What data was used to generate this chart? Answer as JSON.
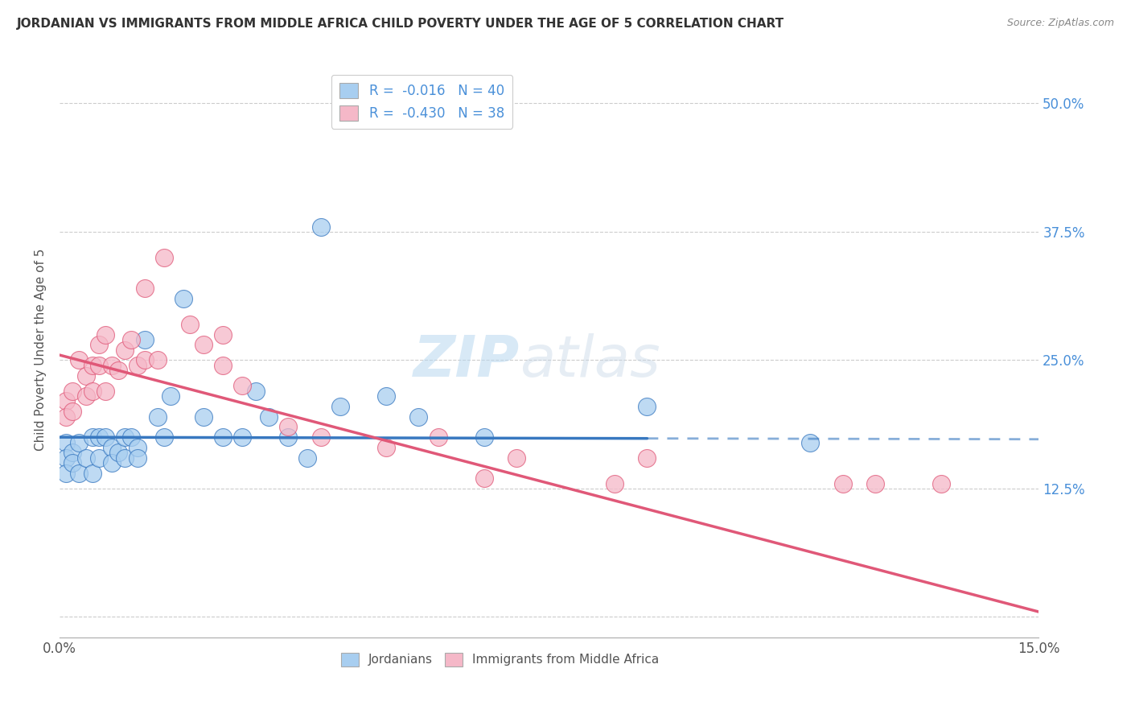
{
  "title": "JORDANIAN VS IMMIGRANTS FROM MIDDLE AFRICA CHILD POVERTY UNDER THE AGE OF 5 CORRELATION CHART",
  "source": "Source: ZipAtlas.com",
  "ylabel": "Child Poverty Under the Age of 5",
  "color_blue": "#a8cef0",
  "color_pink": "#f5b8c8",
  "color_blue_line": "#3878c0",
  "color_pink_line": "#e05878",
  "color_blue_text": "#4a90d9",
  "xlim": [
    0.0,
    0.15
  ],
  "ylim": [
    -0.02,
    0.54
  ],
  "ytick_vals": [
    0.0,
    0.125,
    0.25,
    0.375,
    0.5
  ],
  "ytick_labels": [
    "",
    "12.5%",
    "25.0%",
    "37.5%",
    "50.0%"
  ],
  "blue_line_solid_end": 0.09,
  "jordanians_x": [
    0.001,
    0.001,
    0.001,
    0.002,
    0.002,
    0.003,
    0.003,
    0.004,
    0.005,
    0.005,
    0.006,
    0.006,
    0.007,
    0.008,
    0.008,
    0.009,
    0.01,
    0.01,
    0.011,
    0.012,
    0.012,
    0.013,
    0.015,
    0.016,
    0.017,
    0.019,
    0.022,
    0.025,
    0.028,
    0.03,
    0.032,
    0.035,
    0.038,
    0.04,
    0.043,
    0.05,
    0.055,
    0.065,
    0.09,
    0.115
  ],
  "jordanians_y": [
    0.17,
    0.155,
    0.14,
    0.16,
    0.15,
    0.17,
    0.14,
    0.155,
    0.175,
    0.14,
    0.175,
    0.155,
    0.175,
    0.165,
    0.15,
    0.16,
    0.175,
    0.155,
    0.175,
    0.165,
    0.155,
    0.27,
    0.195,
    0.175,
    0.215,
    0.31,
    0.195,
    0.175,
    0.175,
    0.22,
    0.195,
    0.175,
    0.155,
    0.38,
    0.205,
    0.215,
    0.195,
    0.175,
    0.205,
    0.17
  ],
  "immigrants_x": [
    0.001,
    0.001,
    0.002,
    0.002,
    0.003,
    0.004,
    0.004,
    0.005,
    0.005,
    0.006,
    0.006,
    0.007,
    0.007,
    0.008,
    0.009,
    0.01,
    0.011,
    0.012,
    0.013,
    0.013,
    0.015,
    0.016,
    0.02,
    0.022,
    0.025,
    0.025,
    0.028,
    0.035,
    0.04,
    0.05,
    0.058,
    0.065,
    0.07,
    0.085,
    0.09,
    0.12,
    0.125,
    0.135
  ],
  "immigrants_y": [
    0.21,
    0.195,
    0.22,
    0.2,
    0.25,
    0.235,
    0.215,
    0.245,
    0.22,
    0.265,
    0.245,
    0.22,
    0.275,
    0.245,
    0.24,
    0.26,
    0.27,
    0.245,
    0.25,
    0.32,
    0.25,
    0.35,
    0.285,
    0.265,
    0.245,
    0.275,
    0.225,
    0.185,
    0.175,
    0.165,
    0.175,
    0.135,
    0.155,
    0.13,
    0.155,
    0.13,
    0.13,
    0.13
  ]
}
